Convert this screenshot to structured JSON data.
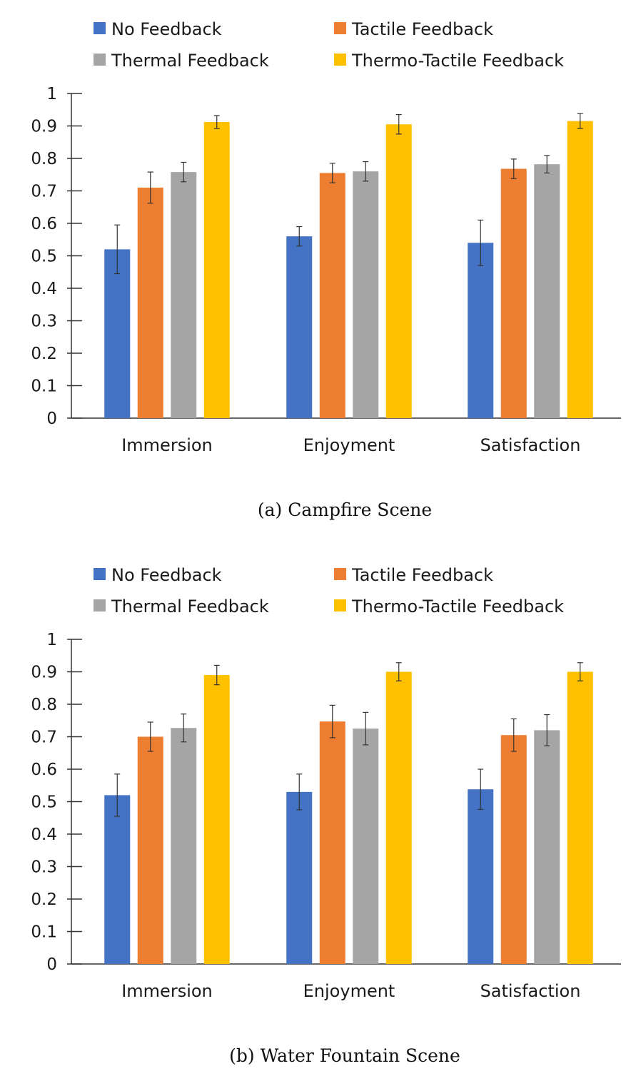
{
  "colors": {
    "no_feedback": "#4472c4",
    "tactile": "#ed7d31",
    "thermal": "#a5a5a5",
    "thermo_tactile": "#ffc000"
  },
  "chart_data": [
    {
      "type": "bar",
      "caption": "(a)  Campfire Scene",
      "categories": [
        "Immersion",
        "Enjoyment",
        "Satisfaction"
      ],
      "ylim": [
        0,
        1
      ],
      "yticks": [
        "0",
        "0.1",
        "0.2",
        "0.3",
        "0.4",
        "0.5",
        "0.6",
        "0.7",
        "0.8",
        "0.9",
        "1"
      ],
      "grid": false,
      "legend": "top",
      "series": [
        {
          "name": "No Feedback",
          "color": "#4472c4",
          "values": [
            0.52,
            0.56,
            0.54
          ],
          "errors": [
            0.075,
            0.03,
            0.07
          ]
        },
        {
          "name": "Tactile Feedback",
          "color": "#ed7d31",
          "values": [
            0.71,
            0.755,
            0.768
          ],
          "errors": [
            0.048,
            0.03,
            0.03
          ]
        },
        {
          "name": "Thermal Feedback",
          "color": "#a5a5a5",
          "values": [
            0.758,
            0.76,
            0.782
          ],
          "errors": [
            0.03,
            0.03,
            0.027
          ]
        },
        {
          "name": "Thermo-Tactile Feedback",
          "color": "#ffc000",
          "values": [
            0.912,
            0.905,
            0.915
          ],
          "errors": [
            0.02,
            0.03,
            0.023
          ]
        }
      ]
    },
    {
      "type": "bar",
      "caption": "(b)  Water Fountain Scene",
      "categories": [
        "Immersion",
        "Enjoyment",
        "Satisfaction"
      ],
      "ylim": [
        0,
        1
      ],
      "yticks": [
        "0",
        "0.1",
        "0.2",
        "0.3",
        "0.4",
        "0.5",
        "0.6",
        "0.7",
        "0.8",
        "0.9",
        "1"
      ],
      "grid": false,
      "legend": "top",
      "series": [
        {
          "name": "No Feedback",
          "color": "#4472c4",
          "values": [
            0.52,
            0.53,
            0.538
          ],
          "errors": [
            0.065,
            0.055,
            0.062
          ]
        },
        {
          "name": "Tactile Feedback",
          "color": "#ed7d31",
          "values": [
            0.7,
            0.747,
            0.705
          ],
          "errors": [
            0.045,
            0.05,
            0.05
          ]
        },
        {
          "name": "Thermal Feedback",
          "color": "#a5a5a5",
          "values": [
            0.727,
            0.725,
            0.72
          ],
          "errors": [
            0.043,
            0.05,
            0.048
          ]
        },
        {
          "name": "Thermo-Tactile Feedback",
          "color": "#ffc000",
          "values": [
            0.89,
            0.9,
            0.9
          ],
          "errors": [
            0.03,
            0.028,
            0.028
          ]
        }
      ]
    }
  ]
}
